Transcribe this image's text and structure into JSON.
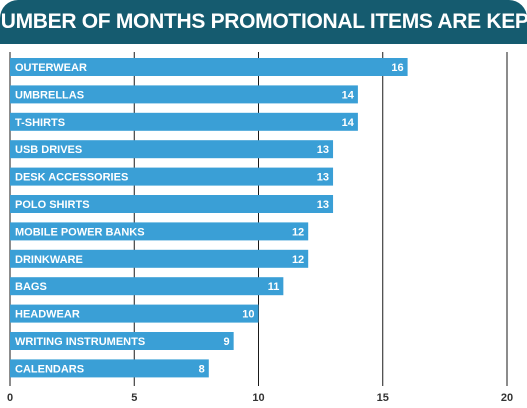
{
  "header": {
    "title": "NUMBER OF MONTHS PROMOTIONAL ITEMS ARE KEPT"
  },
  "colors": {
    "header_bg": "#155b6f",
    "bar": "#3a9fd6",
    "grid": "#1a1a1a"
  },
  "chart_data": {
    "type": "bar",
    "orientation": "horizontal",
    "title": "NUMBER OF MONTHS PROMOTIONAL ITEMS ARE KEPT",
    "categories": [
      "OUTERWEAR",
      "UMBRELLAS",
      "T-SHIRTS",
      "USB DRIVES",
      "DESK ACCESSORIES",
      "POLO SHIRTS",
      "MOBILE POWER BANKS",
      "DRINKWARE",
      "BAGS",
      "HEADWEAR",
      "WRITING INSTRUMENTS",
      "CALENDARS"
    ],
    "values": [
      16,
      14,
      14,
      13,
      13,
      13,
      12,
      12,
      11,
      10,
      9,
      8
    ],
    "xlim": [
      0,
      20
    ],
    "xticks": [
      "0",
      "5",
      "10",
      "15",
      "20"
    ],
    "xlabel": "",
    "ylabel": "",
    "grid": true,
    "data_labels": true
  }
}
